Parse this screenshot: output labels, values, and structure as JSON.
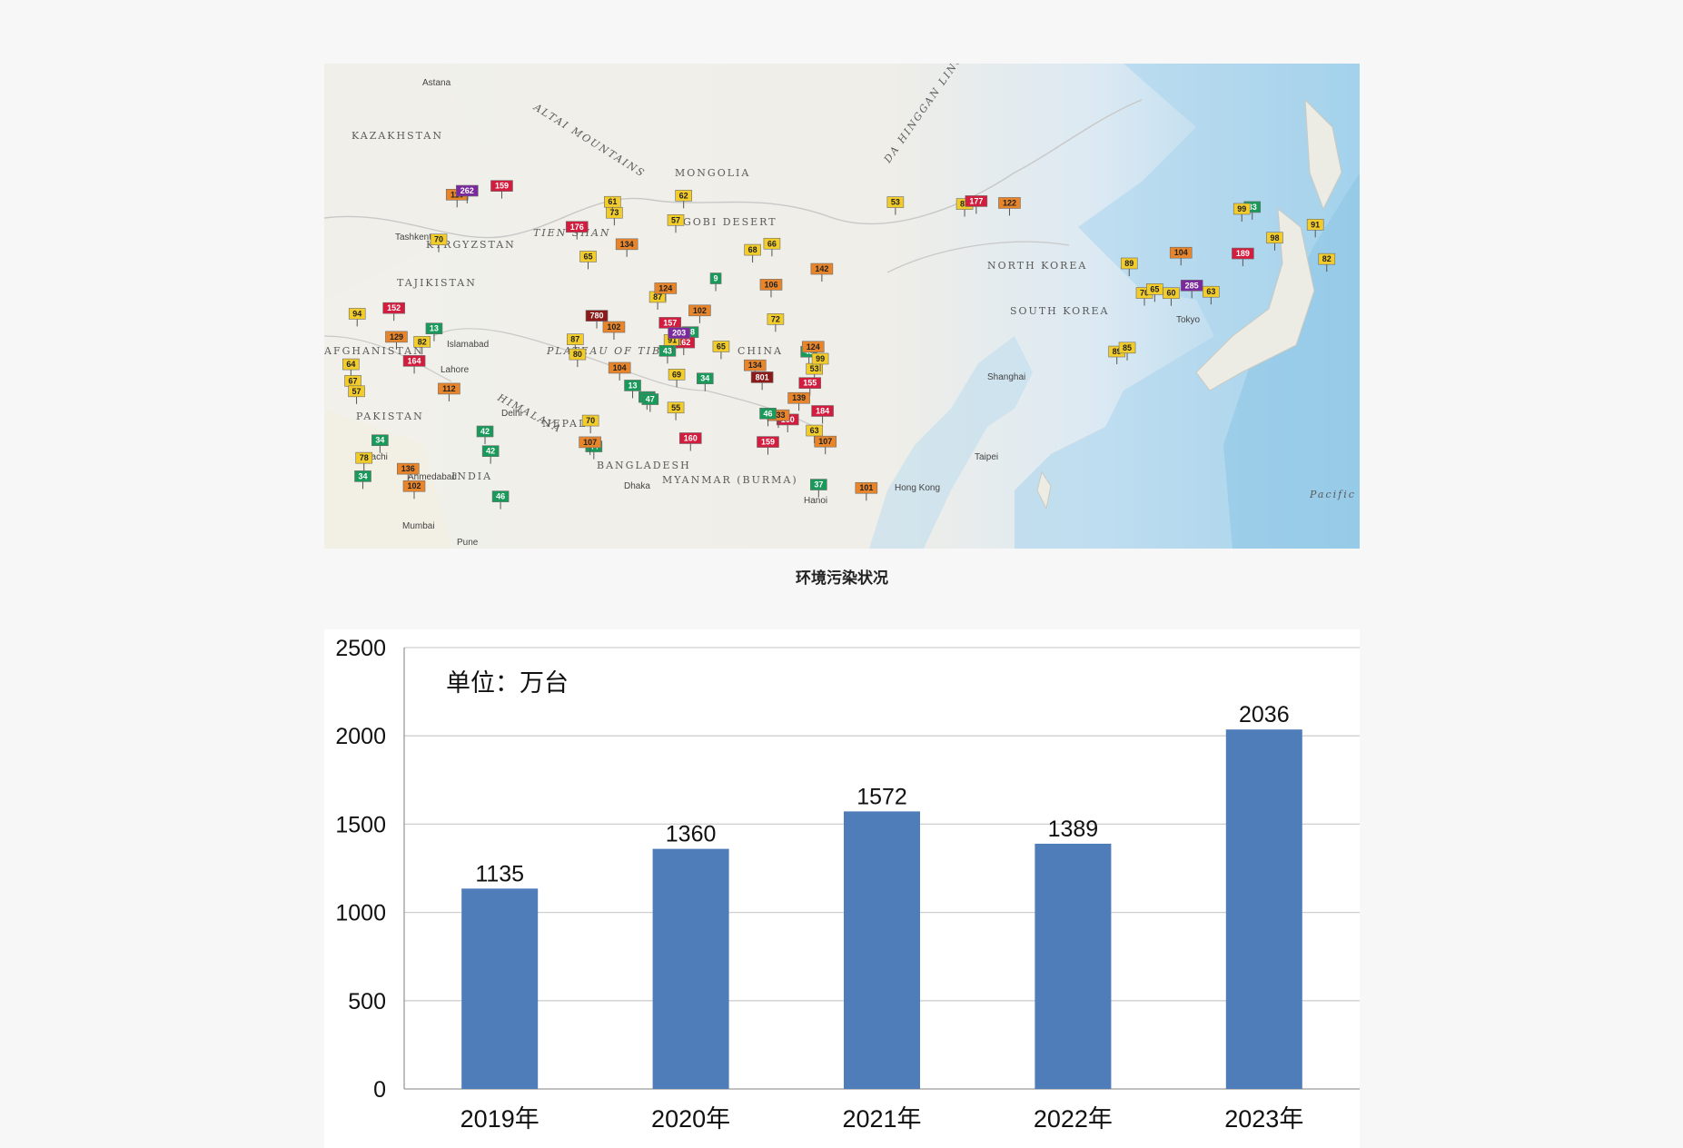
{
  "map": {
    "caption": "环境污染状况",
    "labels": [
      "KAZAKHSTAN",
      "MONGOLIA",
      "GOBI DESERT",
      "KYRGYZSTAN",
      "TAJIKISTAN",
      "AFGHANISTAN",
      "PAKISTAN",
      "PLATEAU OF TIBET",
      "CHINA",
      "NORTH KOREA",
      "SOUTH KOREA",
      "INDIA",
      "NEPAL",
      "BANGLADESH",
      "MYANMAR (BURMA)",
      "ALTAI MOUNTAINS",
      "TIEN SHAN",
      "HIMALAYA",
      "DA HINGGAN LING",
      "Pacific Ocean"
    ],
    "cities": [
      "Astana",
      "Tashkent",
      "Islamabad",
      "Lahore",
      "Delhi",
      "Karachi",
      "Ahmedabad",
      "Mumbai",
      "Pune",
      "Dhaka",
      "Hanoi",
      "Hong Kong",
      "Taipei",
      "Shanghai",
      "Tokyo"
    ],
    "aqi_markers": [
      13,
      38,
      43,
      45,
      70,
      68,
      82,
      107,
      160,
      162,
      159,
      160,
      129,
      89,
      142,
      98,
      136,
      110,
      94,
      134,
      159,
      102,
      164,
      66,
      133,
      101,
      60,
      87,
      69,
      89,
      43,
      44,
      42,
      34,
      33,
      801,
      62,
      99,
      87,
      91,
      64,
      67,
      47,
      73,
      57,
      102,
      72,
      85,
      61,
      70,
      65,
      80,
      91,
      87,
      53,
      42,
      46,
      34,
      63,
      37,
      107,
      112,
      285,
      155,
      157,
      184,
      262,
      152,
      139,
      104,
      106,
      177,
      189,
      124,
      102,
      203,
      176,
      70,
      53,
      57,
      46,
      9,
      13,
      34,
      82,
      122,
      134,
      780,
      124,
      99,
      104,
      78,
      63,
      65,
      55,
      65
    ]
  },
  "chart": {
    "unit_label": "单位：万台",
    "y_ticks": [
      "2500",
      "2000",
      "1500",
      "1000",
      "500",
      "0"
    ]
  },
  "chart_data": {
    "type": "bar",
    "categories": [
      "2019年",
      "2020年",
      "2021年",
      "2022年",
      "2023年"
    ],
    "values": [
      1135,
      1360,
      1572,
      1389,
      2036
    ],
    "ylim": [
      0,
      2500
    ],
    "grid": true,
    "color": "#4f7dba"
  },
  "colors": {
    "good": "#1a9a5a",
    "moderate": "#f2cc2a",
    "usg": "#e8852a",
    "unhealthy": "#d21d3f",
    "very_unhealthy": "#7a2a9c",
    "hazardous": "#8c1a1a"
  }
}
